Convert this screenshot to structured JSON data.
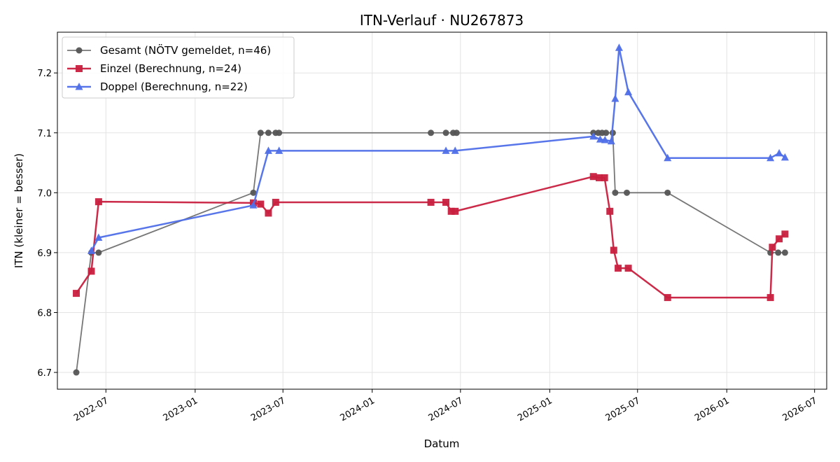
{
  "chart_data": {
    "type": "line",
    "title": "ITN-Verlauf · NU267873",
    "xlabel": "Datum",
    "ylabel": "ITN  (kleiner = besser)",
    "xlim": [
      "2022-03-23",
      "2026-07-26"
    ],
    "ylim": [
      6.672,
      7.268
    ],
    "yticks": [
      6.7,
      6.8,
      6.9,
      7.0,
      7.1,
      7.2
    ],
    "xticks": [
      "2022-07",
      "2023-01",
      "2023-07",
      "2024-01",
      "2024-07",
      "2025-01",
      "2025-07",
      "2026-01",
      "2026-07"
    ],
    "grid": true,
    "legend_position": "top-left",
    "series": [
      {
        "name": "Gesamt (NÖTV gemeldet, n=46)",
        "color": "#555555",
        "marker": "circle",
        "points": [
          [
            "2022-05-01",
            6.7
          ],
          [
            "2022-06-01",
            6.9
          ],
          [
            "2022-06-16",
            6.9
          ],
          [
            "2023-05-01",
            7.0
          ],
          [
            "2023-05-16",
            7.1
          ],
          [
            "2023-06-01",
            7.1
          ],
          [
            "2023-06-16",
            7.1
          ],
          [
            "2023-06-23",
            7.1
          ],
          [
            "2024-05-01",
            7.1
          ],
          [
            "2024-06-01",
            7.1
          ],
          [
            "2024-06-16",
            7.1
          ],
          [
            "2024-06-23",
            7.1
          ],
          [
            "2025-04-01",
            7.1
          ],
          [
            "2025-04-11",
            7.1
          ],
          [
            "2025-04-19",
            7.1
          ],
          [
            "2025-04-27",
            7.1
          ],
          [
            "2025-05-11",
            7.1
          ],
          [
            "2025-05-16",
            7.0
          ],
          [
            "2025-06-09",
            7.0
          ],
          [
            "2025-09-01",
            7.0
          ],
          [
            "2026-04-01",
            6.9
          ],
          [
            "2026-04-17",
            6.9
          ],
          [
            "2026-05-01",
            6.9
          ]
        ]
      },
      {
        "name": "Einzel (Berechnung, n=24)",
        "color": "#c8203f",
        "marker": "square",
        "points": [
          [
            "2022-05-01",
            6.832
          ],
          [
            "2022-06-01",
            6.869
          ],
          [
            "2022-06-16",
            6.985
          ],
          [
            "2023-05-01",
            6.983
          ],
          [
            "2023-05-16",
            6.981
          ],
          [
            "2023-06-01",
            6.966
          ],
          [
            "2023-06-16",
            6.984
          ],
          [
            "2024-05-01",
            6.984
          ],
          [
            "2024-06-01",
            6.984
          ],
          [
            "2024-06-12",
            6.969
          ],
          [
            "2024-06-20",
            6.969
          ],
          [
            "2025-04-01",
            7.027
          ],
          [
            "2025-04-13",
            7.025
          ],
          [
            "2025-04-24",
            7.025
          ],
          [
            "2025-05-05",
            6.969
          ],
          [
            "2025-05-13",
            6.904
          ],
          [
            "2025-05-22",
            6.874
          ],
          [
            "2025-06-12",
            6.874
          ],
          [
            "2025-09-01",
            6.825
          ],
          [
            "2026-04-01",
            6.825
          ],
          [
            "2026-04-05",
            6.909
          ],
          [
            "2026-04-19",
            6.923
          ],
          [
            "2026-05-01",
            6.931
          ]
        ]
      },
      {
        "name": "Doppel (Berechnung, n=22)",
        "color": "#4f6fe8",
        "marker": "triangle",
        "points": [
          [
            "2022-06-01",
            6.903
          ],
          [
            "2022-06-16",
            6.925
          ],
          [
            "2023-05-01",
            6.979
          ],
          [
            "2023-06-01",
            7.07
          ],
          [
            "2023-06-23",
            7.07
          ],
          [
            "2024-06-01",
            7.07
          ],
          [
            "2024-06-20",
            7.07
          ],
          [
            "2025-04-01",
            7.094
          ],
          [
            "2025-04-15",
            7.089
          ],
          [
            "2025-04-25",
            7.088
          ],
          [
            "2025-05-08",
            7.086
          ],
          [
            "2025-05-16",
            7.157
          ],
          [
            "2025-05-24",
            7.242
          ],
          [
            "2025-06-12",
            7.168
          ],
          [
            "2025-09-01",
            7.058
          ],
          [
            "2026-04-01",
            7.058
          ],
          [
            "2026-04-19",
            7.066
          ],
          [
            "2026-05-01",
            7.059
          ]
        ]
      }
    ]
  }
}
